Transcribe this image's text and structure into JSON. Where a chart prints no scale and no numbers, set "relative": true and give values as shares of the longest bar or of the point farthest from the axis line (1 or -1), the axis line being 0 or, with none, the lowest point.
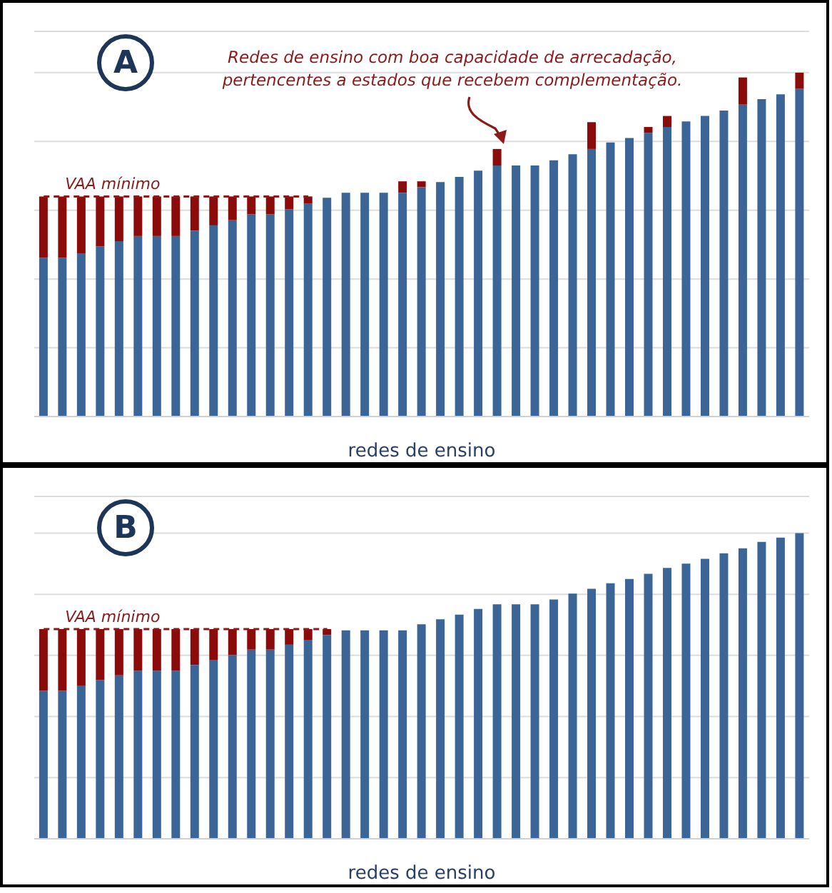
{
  "chart_data": [
    {
      "type": "bar",
      "title": "A",
      "xlabel": "redes de ensino",
      "stacked": true,
      "relative": true,
      "grid": "y",
      "legend": false,
      "categories": [
        null,
        null,
        null,
        null,
        null,
        null,
        null,
        null,
        null,
        null,
        null,
        null,
        null,
        null,
        null,
        null,
        null,
        null,
        null,
        null,
        null,
        null,
        null,
        null,
        null,
        null,
        null,
        null,
        null,
        null,
        null,
        null,
        null,
        null,
        null,
        null,
        null,
        null,
        null,
        null,
        null
      ],
      "series": [
        {
          "color": "#3a6596",
          "values": [
            0.462,
            0.462,
            0.475,
            0.495,
            0.51,
            0.525,
            0.525,
            0.525,
            0.541,
            0.556,
            0.571,
            0.588,
            0.588,
            0.603,
            0.619,
            0.636,
            0.651,
            0.651,
            0.651,
            0.651,
            0.667,
            0.682,
            0.697,
            0.715,
            0.73,
            0.73,
            0.73,
            0.745,
            0.763,
            0.778,
            0.797,
            0.81,
            0.825,
            0.842,
            0.858,
            0.874,
            0.89,
            0.907,
            0.923,
            0.937,
            0.953
          ]
        },
        {
          "color": "#8b0a0a",
          "values": [
            0.178,
            0.178,
            0.165,
            0.145,
            0.13,
            0.115,
            0.115,
            0.115,
            0.099,
            0.084,
            0.069,
            0.052,
            0.052,
            0.037,
            0.021,
            null,
            null,
            null,
            null,
            0.033,
            0.017,
            null,
            null,
            null,
            0.048,
            null,
            null,
            null,
            null,
            0.078,
            null,
            null,
            0.017,
            0.032,
            null,
            null,
            null,
            0.079,
            null,
            null,
            0.047
          ]
        }
      ],
      "ref_lines": [
        {
          "axis": "y",
          "value": 0.64,
          "label": "VAA mínimo",
          "color": "#8b1a1a",
          "line_style": "dashed"
        }
      ],
      "annotations": [
        "Redes de ensino com boa capacidade de arrecadação,\npertencentes a estados que recebem complementação."
      ]
    },
    {
      "type": "bar",
      "title": "B",
      "xlabel": "redes de ensino",
      "stacked": true,
      "relative": true,
      "grid": "y",
      "legend": false,
      "categories": [
        null,
        null,
        null,
        null,
        null,
        null,
        null,
        null,
        null,
        null,
        null,
        null,
        null,
        null,
        null,
        null,
        null,
        null,
        null,
        null,
        null,
        null,
        null,
        null,
        null,
        null,
        null,
        null,
        null,
        null,
        null,
        null,
        null,
        null,
        null,
        null,
        null,
        null,
        null,
        null,
        null
      ],
      "series": [
        {
          "color": "#3a6596",
          "values": [
            0.484,
            0.484,
            0.5,
            0.519,
            0.535,
            0.55,
            0.55,
            0.55,
            0.569,
            0.584,
            0.601,
            0.619,
            0.619,
            0.635,
            0.651,
            0.667,
            0.682,
            0.682,
            0.682,
            0.682,
            0.702,
            0.718,
            0.733,
            0.752,
            0.767,
            0.767,
            0.767,
            0.783,
            0.802,
            0.818,
            0.836,
            0.85,
            0.867,
            0.886,
            0.9,
            0.916,
            0.934,
            0.95,
            0.971,
            0.985,
            1
          ]
        },
        {
          "color": "#8b0a0a",
          "values": [
            0.202,
            0.202,
            0.186,
            0.167,
            0.151,
            0.136,
            0.136,
            0.136,
            0.117,
            0.102,
            0.085,
            0.067,
            0.067,
            0.051,
            0.035,
            0.019,
            null,
            null,
            null,
            null,
            null,
            null,
            null,
            null,
            null,
            null,
            null,
            null,
            null,
            null,
            null,
            null,
            null,
            null,
            null,
            null,
            null,
            null,
            null,
            null,
            null
          ]
        }
      ],
      "ref_lines": [
        {
          "axis": "y",
          "value": 0.686,
          "label": "VAA mínimo",
          "color": "#8b1a1a",
          "line_style": "dashed"
        }
      ]
    }
  ]
}
